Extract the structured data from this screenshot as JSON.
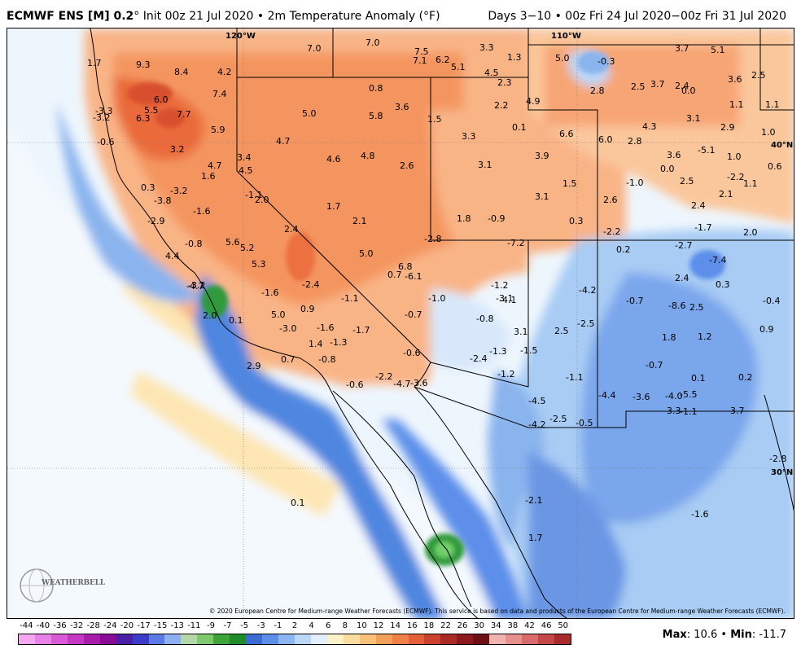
{
  "header": {
    "title_bold": "ECMWF ENS [M] 0.2",
    "title_rest": "° Init 00z 21 Jul 2020 • 2m Temperature Anomaly (°F)",
    "valid_range": "Days 3−10 • 00z Fri 24 Jul 2020−00z Fri 31 Jul 2020"
  },
  "map": {
    "longitude_labels": [
      "120°W",
      "110°W"
    ],
    "latitude_labels": [
      "40°N",
      "30°N"
    ],
    "values": [
      "1.7",
      "9.3",
      "8.4",
      "4.2",
      "7.0",
      "7.0",
      "7.5",
      "7.1",
      "6.2",
      "5.1",
      "3.3",
      "4.5",
      "1.3",
      "5.0",
      "-0.3",
      "3.7",
      "5.1",
      "2.5",
      "3.6",
      "2.8",
      "2.5",
      "3.7",
      "2.4",
      "0.0",
      "1.1",
      "1.1",
      "-3.3",
      "-3.2",
      "6.0",
      "5.5",
      "6.3",
      "7.7",
      "7.4",
      "0.8",
      "3.6",
      "5.0",
      "5.8",
      "1.5",
      "2.2",
      "4.9",
      "2.3",
      "-0.6",
      "5.9",
      "3.2",
      "4.7",
      "3.4",
      "4.5",
      "4.7",
      "4.6",
      "4.8",
      "2.6",
      "3.3",
      "0.1",
      "6.6",
      "6.0",
      "2.8",
      "4.3",
      "3.1",
      "2.9",
      "1.0",
      "-5.1",
      "3.6",
      "1.0",
      "0.6",
      "3.1",
      "3.9",
      "0.0",
      "-2.2",
      "1.1",
      "0.3",
      "-3.2",
      "-3.8",
      "-1.6",
      "-2.9",
      "1.6",
      "-1.1",
      "2.0",
      "1.7",
      "2.1",
      "3.1",
      "1.5",
      "2.6",
      "-1.0",
      "2.5",
      "2.1",
      "1.8",
      "-0.9",
      "0.3",
      "2.4",
      "-1.7",
      "-7.2",
      "-2.2",
      "-0.8",
      "5.6",
      "5.2",
      "2.4",
      "-2.8",
      "-2.4",
      "0.2",
      "-2.7",
      "2.0",
      "4.4",
      "5.3",
      "5.0",
      "6.8",
      "0.7",
      "-6.1",
      "-1.6",
      "-1.0",
      "-7.4",
      "2.4",
      "0.3",
      "-4.7",
      "-3.2",
      "-1.2",
      "-3.1",
      "-4.1",
      "-4.2",
      "-0.7",
      "-8.6",
      "2.5",
      "-0.4",
      "2.0",
      "0.1",
      "5.0",
      "0.9",
      "-1.1",
      "-0.7",
      "-1.7",
      "-0.8",
      "3.1",
      "2.5",
      "-2.5",
      "-3.0",
      "-1.6",
      "1.8",
      "1.2",
      "0.9",
      "1.4",
      "-1.3",
      "-1.5",
      "-1.3",
      "2.9",
      "0.7",
      "-0.8",
      "-0.6",
      "-2.4",
      "-0.7",
      "-1.2",
      "-1.1",
      "0.1",
      "0.2",
      "-0.6",
      "-2.2",
      "-4.7",
      "-3.6",
      "-4.5",
      "-4.4",
      "-3.6",
      "-4.0",
      "-5.5",
      "-3.7",
      "-4.2",
      "-2.5",
      "-0.5",
      "-3.3",
      "-1.1",
      "-2.8",
      "0.1",
      "-2.1",
      "-1.6",
      "1.7"
    ],
    "copyright": "© 2020 European Centre for Medium-range Weather Forecasts (ECMWF). This service is based on data and products of the European Centre for Medium-range Weather Forecasts (ECMWF).",
    "logo_text": "WEATHERBELL"
  },
  "legend": {
    "ticks": [
      "-44",
      "-40",
      "-36",
      "-32",
      "-28",
      "-24",
      "-20",
      "-17",
      "-15",
      "-13",
      "-11",
      "-9",
      "-7",
      "-5",
      "-3",
      "-1",
      "2",
      "4",
      "6",
      "8",
      "10",
      "12",
      "14",
      "16",
      "18",
      "22",
      "26",
      "30",
      "34",
      "38",
      "42",
      "46",
      "50"
    ],
    "colors": [
      "#f5a8f0",
      "#e882e6",
      "#d85ad6",
      "#c438c4",
      "#a81ea8",
      "#8a0c96",
      "#4a1fa8",
      "#3c3cc8",
      "#5a7ae6",
      "#8eb0f0",
      "#b6d8a8",
      "#7ec86e",
      "#3ea43a",
      "#1e8c28",
      "#3a6ad2",
      "#5c8eea",
      "#8cb6f2",
      "#bcd8f8",
      "#e2eefc",
      "#fff2c8",
      "#fddca0",
      "#f8c078",
      "#f4a05c",
      "#ee8048",
      "#e2603a",
      "#cc402e",
      "#ac2a26",
      "#8a1a1e",
      "#6c1016",
      "#f0b4b0",
      "#e8908e",
      "#d86c6c",
      "#c44848",
      "#a82a2a"
    ],
    "max_label": "Max",
    "max_value": ": 10.6",
    "min_label": "Min",
    "min_value": ": -11.7",
    "separator": " • "
  }
}
